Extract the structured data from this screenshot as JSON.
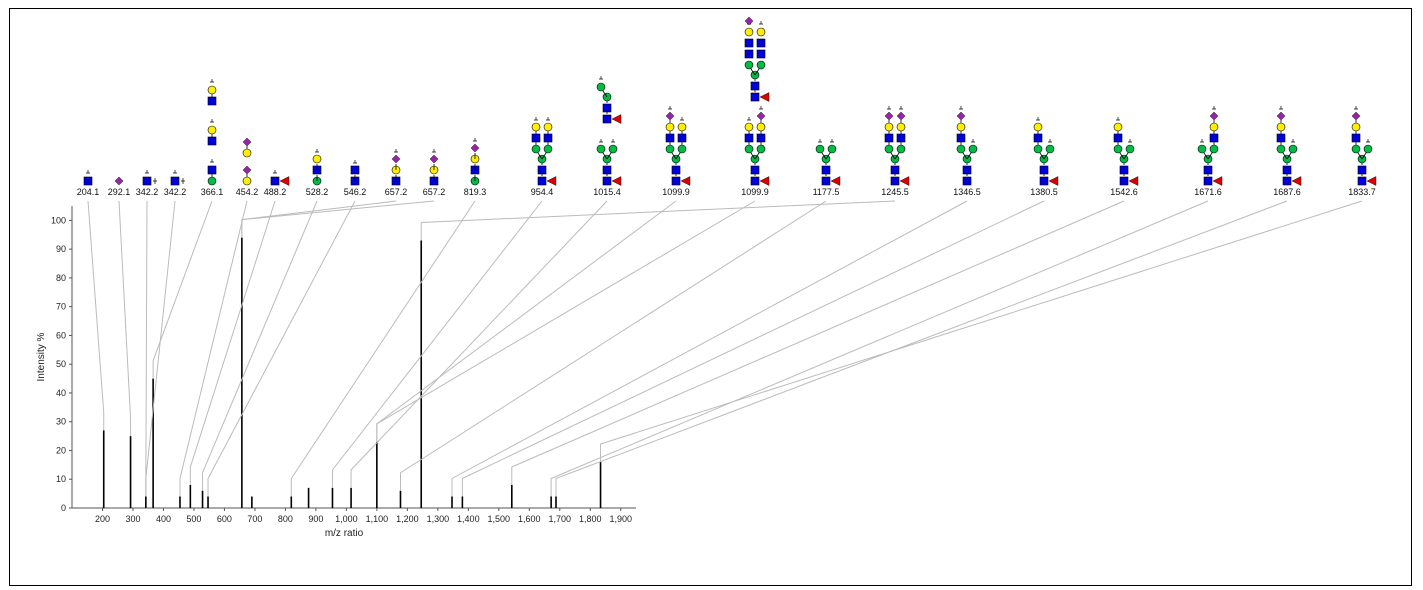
{
  "chart_data": {
    "type": "bar",
    "xlabel": "m/z ratio",
    "ylabel": "Intensity %",
    "xlim": [
      100,
      1950
    ],
    "ylim": [
      0,
      105
    ],
    "x_ticks": [
      "200",
      "300",
      "400",
      "500",
      "600",
      "700",
      "800",
      "900",
      "1,000",
      "1,100",
      "1,200",
      "1,300",
      "1,400",
      "1,500",
      "1,600",
      "1,700",
      "1,800",
      "1,900"
    ],
    "y_ticks": [
      "0",
      "10",
      "20",
      "30",
      "40",
      "50",
      "60",
      "70",
      "80",
      "90",
      "100"
    ],
    "series": [
      {
        "peaks": [
          {
            "x": 204.1,
            "y": 27
          },
          {
            "x": 292.1,
            "y": 25
          },
          {
            "x": 342.2,
            "y": 4
          },
          {
            "x": 366.1,
            "y": 45
          },
          {
            "x": 454.2,
            "y": 4
          },
          {
            "x": 488.2,
            "y": 8
          },
          {
            "x": 528.2,
            "y": 6
          },
          {
            "x": 546.2,
            "y": 4
          },
          {
            "x": 657.2,
            "y": 94
          },
          {
            "x": 690,
            "y": 4
          },
          {
            "x": 819.3,
            "y": 4
          },
          {
            "x": 876,
            "y": 7
          },
          {
            "x": 954.4,
            "y": 7
          },
          {
            "x": 1015.4,
            "y": 7
          },
          {
            "x": 1099.9,
            "y": 23
          },
          {
            "x": 1177.5,
            "y": 6
          },
          {
            "x": 1245.5,
            "y": 93
          },
          {
            "x": 1346.5,
            "y": 4
          },
          {
            "x": 1380.5,
            "y": 4
          },
          {
            "x": 1542.6,
            "y": 8
          },
          {
            "x": 1671.6,
            "y": 4
          },
          {
            "x": 1687.6,
            "y": 4
          },
          {
            "x": 1833.7,
            "y": 16
          }
        ]
      }
    ],
    "labeled_peaks": [
      {
        "label": "204.1",
        "x": 204.1,
        "glycan": "hexnac"
      },
      {
        "label": "292.1",
        "x": 292.1,
        "glycan": "neuac"
      },
      {
        "label": "342.2",
        "x": 342.2,
        "glycan": "hexnac-nh2"
      },
      {
        "label": "342.2",
        "x": 342.2,
        "glycan": "hexnac-nh2"
      },
      {
        "label": "366.1",
        "x": 366.1,
        "glycan": "366"
      },
      {
        "label": "454.2",
        "x": 454.2,
        "glycan": "454"
      },
      {
        "label": "488.2",
        "x": 488.2,
        "glycan": "hexnac-fuc"
      },
      {
        "label": "528.2",
        "x": 528.2,
        "glycan": "528"
      },
      {
        "label": "546.2",
        "x": 546.2,
        "glycan": "546"
      },
      {
        "label": "657.2",
        "x": 657.2,
        "glycan": "657a"
      },
      {
        "label": "657.2",
        "x": 657.2,
        "glycan": "657b"
      },
      {
        "label": "819.3",
        "x": 819.3,
        "glycan": "819"
      },
      {
        "label": "954.4",
        "x": 954.4,
        "glycan": "954"
      },
      {
        "label": "1015.4",
        "x": 1015.4,
        "glycan": "1015"
      },
      {
        "label": "1099.9",
        "x": 1099.9,
        "glycan": "1099a"
      },
      {
        "label": "1099.9",
        "x": 1099.9,
        "glycan": "1099b"
      },
      {
        "label": "1177.5",
        "x": 1177.5,
        "glycan": "1177"
      },
      {
        "label": "1245.5",
        "x": 1245.5,
        "glycan": "1245"
      },
      {
        "label": "1346.5",
        "x": 1346.5,
        "glycan": "1346"
      },
      {
        "label": "1380.5",
        "x": 1380.5,
        "glycan": "1380"
      },
      {
        "label": "1542.6",
        "x": 1542.6,
        "glycan": "1542"
      },
      {
        "label": "1671.6",
        "x": 1671.6,
        "glycan": "1671"
      },
      {
        "label": "1687.6",
        "x": 1687.6,
        "glycan": "1687"
      },
      {
        "label": "1833.7",
        "x": 1833.7,
        "glycan": "1833"
      }
    ],
    "colors": {
      "hexnac": "#0000dd",
      "hexose": "#ffee00",
      "mannose": "#00bb44",
      "neuac": "#9922aa",
      "fucose": "#dd0000",
      "connector": "#bbbbbb",
      "peak": "#000000"
    },
    "grid": false
  }
}
